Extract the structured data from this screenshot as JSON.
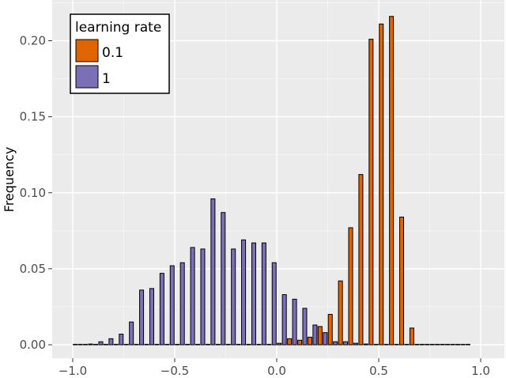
{
  "chart_data": {
    "type": "bar",
    "xlabel": "",
    "ylabel": "Frequency",
    "xlim": [
      -1.0,
      1.0
    ],
    "ylim": [
      0,
      0.22
    ],
    "xticks": [
      -1.0,
      -0.5,
      0.0,
      0.5,
      1.0
    ],
    "xtick_labels": [
      "−1.0",
      "−0.5",
      "0.0",
      "0.5",
      "1.0"
    ],
    "yticks": [
      0.0,
      0.05,
      0.1,
      0.15,
      0.2
    ],
    "ytick_labels": [
      "0.00",
      "0.05",
      "0.10",
      "0.15",
      "0.20"
    ],
    "grid": true,
    "bin_centers": [
      -0.975,
      -0.925,
      -0.875,
      -0.825,
      -0.775,
      -0.725,
      -0.675,
      -0.625,
      -0.575,
      -0.525,
      -0.475,
      -0.425,
      -0.375,
      -0.325,
      -0.275,
      -0.225,
      -0.175,
      -0.125,
      -0.075,
      -0.025,
      0.025,
      0.075,
      0.125,
      0.175,
      0.225,
      0.275,
      0.325,
      0.375,
      0.425,
      0.475,
      0.525,
      0.575,
      0.625,
      0.675,
      0.725,
      0.775,
      0.825,
      0.875,
      0.925
    ],
    "legend": {
      "title": "learning rate",
      "position": "top-left"
    },
    "series": [
      {
        "name": "0.1",
        "color": "#e06400",
        "values": [
          0,
          0,
          0,
          0,
          0,
          0,
          0,
          0,
          0,
          0,
          0,
          0,
          0,
          0,
          0,
          0,
          0,
          0,
          0,
          0,
          0.001,
          0.004,
          0.003,
          0.005,
          0.012,
          0.02,
          0.042,
          0.077,
          0.112,
          0.201,
          0.211,
          0.216,
          0.084,
          0.011,
          0,
          0,
          0,
          0,
          0
        ]
      },
      {
        "name": "1",
        "color": "#7b70b6",
        "values": [
          0.0002,
          0.0005,
          0.002,
          0.004,
          0.007,
          0.015,
          0.036,
          0.037,
          0.047,
          0.052,
          0.054,
          0.064,
          0.063,
          0.096,
          0.087,
          0.063,
          0.069,
          0.067,
          0.067,
          0.054,
          0.033,
          0.03,
          0.024,
          0.013,
          0.008,
          0.002,
          0.002,
          0.001,
          0.0005,
          0,
          0,
          0,
          0,
          0,
          0,
          0,
          0,
          0,
          0
        ]
      }
    ]
  }
}
